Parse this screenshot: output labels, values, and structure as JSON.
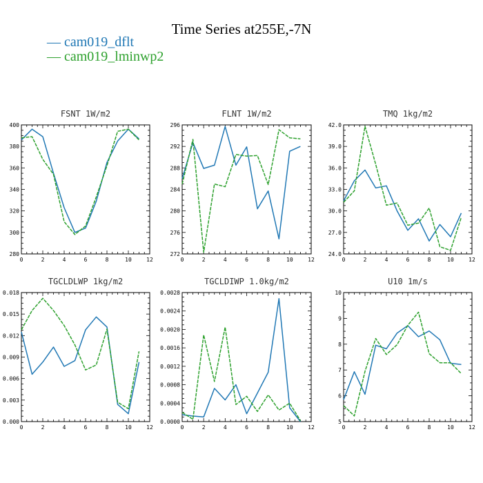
{
  "title": "Time Series at255E,-7N",
  "legend": [
    {
      "label": "cam019_dflt",
      "color": "#1f77b4"
    },
    {
      "label": "cam019_lminwp2",
      "color": "#2ca02c"
    }
  ],
  "chart_data": [
    {
      "type": "line",
      "var": "FSNT",
      "unit": "1W/m2",
      "xlim": [
        0,
        12
      ],
      "ylim": [
        280,
        400
      ],
      "xticks": [
        "0",
        "2",
        "4",
        "6",
        "8",
        "10",
        "12"
      ],
      "yticks": [
        "280",
        "300",
        "320",
        "340",
        "360",
        "380",
        "400"
      ],
      "x": [
        0,
        1,
        2,
        3,
        4,
        5,
        6,
        7,
        8,
        9,
        10,
        11
      ],
      "series": [
        {
          "name": "cam019_dflt",
          "values": [
            386,
            396,
            389,
            355,
            323,
            300,
            304,
            329,
            365,
            385,
            396,
            387
          ]
        },
        {
          "name": "cam019_lminwp2",
          "values": [
            388,
            389,
            368,
            354,
            310,
            298,
            306,
            333,
            362,
            394,
            396,
            386
          ]
        }
      ]
    },
    {
      "type": "line",
      "var": "FLNT",
      "unit": "1W/m2",
      "xlim": [
        0,
        12
      ],
      "ylim": [
        272,
        296
      ],
      "xticks": [
        "0",
        "2",
        "4",
        "6",
        "8",
        "10",
        "12"
      ],
      "yticks": [
        "272",
        "276",
        "280",
        "284",
        "288",
        "292",
        "296"
      ],
      "x": [
        0,
        1,
        2,
        3,
        4,
        5,
        6,
        7,
        8,
        9,
        10,
        11
      ],
      "series": [
        {
          "name": "cam019_dflt",
          "values": [
            286,
            292.7,
            287.9,
            288.5,
            295.7,
            288.5,
            291.9,
            280.4,
            283.7,
            274.8,
            291.1,
            292
          ]
        },
        {
          "name": "cam019_lminwp2",
          "values": [
            285,
            293.3,
            272.3,
            285,
            284.5,
            290.5,
            290.2,
            290.3,
            284.9,
            295.1,
            293.6,
            293.4
          ]
        }
      ]
    },
    {
      "type": "line",
      "var": "TMQ",
      "unit": "1kg/m2",
      "xlim": [
        0,
        12
      ],
      "ylim": [
        24,
        42
      ],
      "xticks": [
        "0",
        "2",
        "4",
        "6",
        "8",
        "10",
        "12"
      ],
      "yticks": [
        "24.0",
        "27.0",
        "30.0",
        "33.0",
        "36.0",
        "39.0",
        "42.0"
      ],
      "x": [
        0,
        1,
        2,
        3,
        4,
        5,
        6,
        7,
        8,
        9,
        10,
        11
      ],
      "series": [
        {
          "name": "cam019_dflt",
          "values": [
            31.4,
            34.2,
            35.7,
            33.2,
            33.5,
            30.0,
            27.3,
            28.9,
            25.8,
            28.1,
            26.4,
            29.7
          ]
        },
        {
          "name": "cam019_lminwp2",
          "values": [
            31.2,
            32.8,
            41.8,
            36.5,
            30.8,
            31.1,
            28.0,
            28.3,
            30.4,
            25.0,
            24.5,
            29.1
          ]
        }
      ]
    },
    {
      "type": "line",
      "var": "TGCLDLWP",
      "unit": "1kg/m2",
      "xlim": [
        0,
        12
      ],
      "ylim": [
        0,
        0.018
      ],
      "xticks": [
        "0",
        "2",
        "4",
        "6",
        "8",
        "10",
        "12"
      ],
      "yticks": [
        "0.000",
        "0.003",
        "0.006",
        "0.009",
        "0.012",
        "0.015",
        "0.018"
      ],
      "x": [
        0,
        1,
        2,
        3,
        4,
        5,
        6,
        7,
        8,
        9,
        10,
        11
      ],
      "series": [
        {
          "name": "cam019_dflt",
          "values": [
            0.0125,
            0.0066,
            0.0083,
            0.0104,
            0.0077,
            0.0085,
            0.0128,
            0.0146,
            0.0132,
            0.0024,
            0.0011,
            0.0083
          ]
        },
        {
          "name": "cam019_lminwp2",
          "values": [
            0.0128,
            0.0155,
            0.0172,
            0.0155,
            0.0134,
            0.0107,
            0.0072,
            0.0079,
            0.0129,
            0.0027,
            0.0018,
            0.0098
          ]
        }
      ]
    },
    {
      "type": "line",
      "var": "TGCLDIWP",
      "unit": "1.0kg/m2",
      "xlim": [
        0,
        12
      ],
      "ylim": [
        0,
        0.0028
      ],
      "xticks": [
        "0",
        "2",
        "4",
        "6",
        "8",
        "10",
        "12"
      ],
      "yticks": [
        "0.0000",
        "0.0004",
        "0.0008",
        "0.0012",
        "0.0016",
        "0.0020",
        "0.0024",
        "0.0028"
      ],
      "x": [
        0,
        1,
        2,
        3,
        4,
        5,
        6,
        7,
        8,
        9,
        10,
        11
      ],
      "series": [
        {
          "name": "cam019_dflt",
          "values": [
            0.00015,
            0.00012,
            0.0001,
            0.00072,
            0.00047,
            0.0008,
            0.00017,
            0.00062,
            0.00107,
            0.00267,
            0.0003,
            0.0
          ]
        },
        {
          "name": "cam019_lminwp2",
          "values": [
            0.0002,
            5e-05,
            0.00188,
            0.00087,
            0.00205,
            0.00037,
            0.00055,
            0.00022,
            0.00058,
            0.00025,
            0.0004,
            2e-05
          ]
        }
      ]
    },
    {
      "type": "line",
      "var": "U10",
      "unit": "1m/s",
      "xlim": [
        0,
        12
      ],
      "ylim": [
        5,
        10
      ],
      "xticks": [
        "0",
        "2",
        "4",
        "6",
        "8",
        "10",
        "12"
      ],
      "yticks": [
        "5",
        "6",
        "7",
        "8",
        "9",
        "10"
      ],
      "x": [
        0,
        1,
        2,
        3,
        4,
        5,
        6,
        7,
        8,
        9,
        10,
        11
      ],
      "series": [
        {
          "name": "cam019_dflt",
          "values": [
            5.85,
            6.93,
            6.06,
            7.96,
            7.82,
            8.43,
            8.72,
            8.29,
            8.51,
            8.17,
            7.26,
            7.21
          ]
        },
        {
          "name": "cam019_lminwp2",
          "values": [
            5.62,
            5.22,
            6.95,
            8.22,
            7.6,
            7.98,
            8.73,
            9.24,
            7.63,
            7.28,
            7.28,
            6.86
          ]
        }
      ]
    }
  ]
}
